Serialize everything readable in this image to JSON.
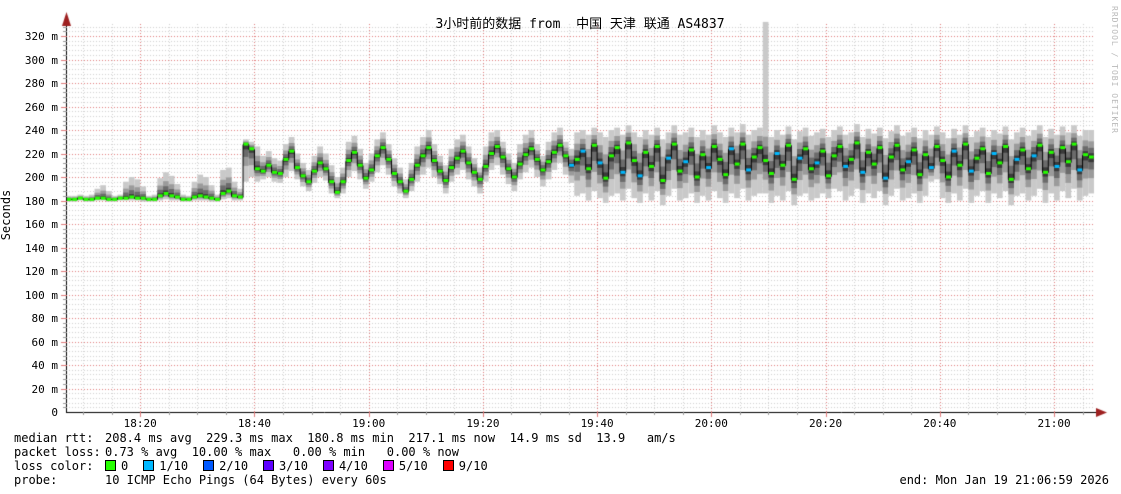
{
  "watermark": "RRDTOOL / TOBI OETIKER",
  "stats": {
    "rows": [
      {
        "label": "median rtt:",
        "text": "208.4 ms avg  229.3 ms max  180.8 ms min  217.1 ms now  14.9 ms sd  13.9   am/s"
      },
      {
        "label": "packet loss:",
        "text": "0.73 % avg  10.00 % max   0.00 % min   0.00 % now"
      },
      {
        "label": "loss color:",
        "legend": true
      },
      {
        "label": "probe:",
        "text": "10 ICMP Echo Pings (64 Bytes) every 60s"
      }
    ],
    "end_label": "end: Mon Jan 19 21:06:59 2026"
  },
  "legend_loss": [
    {
      "label": "0",
      "color": "#26ff00"
    },
    {
      "label": "1/10",
      "color": "#00b8ff"
    },
    {
      "label": "2/10",
      "color": "#0059ff"
    },
    {
      "label": "3/10",
      "color": "#5e00ff"
    },
    {
      "label": "4/10",
      "color": "#7e00ff"
    },
    {
      "label": "5/10",
      "color": "#dd00ff"
    },
    {
      "label": "9/10",
      "color": "#ff0000"
    }
  ],
  "chart_data": {
    "type": "line",
    "variant": "smokeping-latency-smoke-band",
    "title": "3小时前的数据 from  中国 天津 联通 AS4837",
    "ylabel": "Seconds",
    "ylim": [
      0,
      330
    ],
    "y_unit": "ms",
    "y_major_step": 20,
    "y_minor_step": 4,
    "grid": true,
    "y_ticks": [
      {
        "value": 0,
        "label": "0"
      },
      {
        "value": 20,
        "label": "20 m"
      },
      {
        "value": 40,
        "label": "40 m"
      },
      {
        "value": 60,
        "label": "60 m"
      },
      {
        "value": 80,
        "label": "80 m"
      },
      {
        "value": 100,
        "label": "100 m"
      },
      {
        "value": 120,
        "label": "120 m"
      },
      {
        "value": 140,
        "label": "140 m"
      },
      {
        "value": 160,
        "label": "160 m"
      },
      {
        "value": 180,
        "label": "180 m"
      },
      {
        "value": 200,
        "label": "200 m"
      },
      {
        "value": 220,
        "label": "220 m"
      },
      {
        "value": 240,
        "label": "240 m"
      },
      {
        "value": 260,
        "label": "260 m"
      },
      {
        "value": 280,
        "label": "280 m"
      },
      {
        "value": 300,
        "label": "300 m"
      },
      {
        "value": 320,
        "label": "320 m"
      }
    ],
    "x_start": "18:07",
    "x_end": "21:07",
    "point_interval_min": 1,
    "x_minor_step_min": 5,
    "x_ticks": [
      {
        "label": "18:20",
        "min": 13
      },
      {
        "label": "18:40",
        "min": 33
      },
      {
        "label": "19:00",
        "min": 53
      },
      {
        "label": "19:20",
        "min": 73
      },
      {
        "label": "19:40",
        "min": 93
      },
      {
        "label": "20:00",
        "min": 113
      },
      {
        "label": "20:20",
        "min": 133
      },
      {
        "label": "20:40",
        "min": 153
      },
      {
        "label": "21:00",
        "min": 173
      }
    ],
    "summary": {
      "median_rtt_ms": {
        "avg": 208.4,
        "max": 229.3,
        "min": 180.8,
        "now": 217.1,
        "sd": 14.9,
        "am_s": 13.9
      },
      "packet_loss_pct": {
        "avg": 0.73,
        "max": 10.0,
        "min": 0.0,
        "now": 0.0
      }
    },
    "colors": {
      "median_by_loss_bucket": [
        "#26ff00",
        "#00b8ff",
        "#0059ff",
        "#5e00ff",
        "#7e00ff",
        "#dd00ff",
        "#ff0000"
      ],
      "smoke_layers": [
        "#c9c9c9",
        "#9b9b9b",
        "#6b6b6b",
        "#3a3a3a"
      ],
      "grid_major": "#e07a7a",
      "grid_minor": "#cfcfcf",
      "axis": "#000000",
      "arrow": "#9e2020",
      "median_line": "#000000"
    },
    "series_format": [
      "median_ms",
      "smoke_low_ms",
      "smoke_high_ms",
      "loss_bucket"
    ],
    "points": [
      [
        181,
        179,
        184,
        0
      ],
      [
        181,
        179,
        184,
        0
      ],
      [
        182,
        180,
        185,
        0
      ],
      [
        181,
        179,
        184,
        0
      ],
      [
        181,
        179,
        185,
        0
      ],
      [
        182,
        180,
        190,
        0
      ],
      [
        182,
        180,
        193,
        0
      ],
      [
        181,
        179,
        188,
        0
      ],
      [
        181,
        179,
        184,
        0
      ],
      [
        182,
        180,
        185,
        0
      ],
      [
        182,
        180,
        196,
        0
      ],
      [
        183,
        180,
        200,
        0
      ],
      [
        182,
        180,
        198,
        0
      ],
      [
        182,
        179,
        192,
        0
      ],
      [
        181,
        179,
        184,
        0
      ],
      [
        181,
        179,
        185,
        0
      ],
      [
        184,
        180,
        199,
        0
      ],
      [
        186,
        181,
        204,
        0
      ],
      [
        184,
        180,
        201,
        0
      ],
      [
        183,
        180,
        194,
        0
      ],
      [
        181,
        179,
        185,
        0
      ],
      [
        181,
        179,
        184,
        0
      ],
      [
        183,
        180,
        196,
        0
      ],
      [
        184,
        180,
        202,
        0
      ],
      [
        183,
        180,
        200,
        0
      ],
      [
        182,
        179,
        193,
        0
      ],
      [
        181,
        179,
        185,
        0
      ],
      [
        186,
        181,
        206,
        0
      ],
      [
        188,
        182,
        208,
        0
      ],
      [
        184,
        180,
        196,
        0
      ],
      [
        183,
        180,
        190,
        0
      ],
      [
        228,
        196,
        232,
        0
      ],
      [
        224,
        200,
        230,
        0
      ],
      [
        207,
        196,
        226,
        0
      ],
      [
        205,
        198,
        218,
        0
      ],
      [
        210,
        200,
        222,
        0
      ],
      [
        204,
        196,
        216,
        0
      ],
      [
        203,
        195,
        214,
        0
      ],
      [
        215,
        200,
        228,
        0
      ],
      [
        222,
        205,
        234,
        0
      ],
      [
        208,
        198,
        220,
        0
      ],
      [
        201,
        192,
        212,
        0
      ],
      [
        196,
        188,
        206,
        0
      ],
      [
        205,
        195,
        218,
        0
      ],
      [
        212,
        200,
        226,
        0
      ],
      [
        207,
        197,
        220,
        0
      ],
      [
        196,
        186,
        210,
        0
      ],
      [
        187,
        182,
        200,
        0
      ],
      [
        196,
        186,
        208,
        0
      ],
      [
        214,
        200,
        230,
        0
      ],
      [
        221,
        205,
        235,
        0
      ],
      [
        210,
        198,
        224,
        0
      ],
      [
        199,
        190,
        212,
        0
      ],
      [
        206,
        196,
        220,
        0
      ],
      [
        218,
        204,
        232,
        0
      ],
      [
        225,
        210,
        238,
        0
      ],
      [
        215,
        202,
        228,
        0
      ],
      [
        203,
        192,
        216,
        0
      ],
      [
        196,
        186,
        208,
        0
      ],
      [
        188,
        182,
        198,
        0
      ],
      [
        198,
        188,
        212,
        0
      ],
      [
        210,
        196,
        226,
        0
      ],
      [
        218,
        202,
        234,
        0
      ],
      [
        225,
        208,
        240,
        0
      ],
      [
        214,
        200,
        228,
        0
      ],
      [
        205,
        194,
        218,
        0
      ],
      [
        197,
        186,
        210,
        0
      ],
      [
        208,
        196,
        224,
        0
      ],
      [
        216,
        202,
        232,
        0
      ],
      [
        222,
        206,
        236,
        0
      ],
      [
        212,
        198,
        226,
        0
      ],
      [
        204,
        192,
        216,
        0
      ],
      [
        198,
        186,
        208,
        0
      ],
      [
        209,
        196,
        226,
        0
      ],
      [
        220,
        206,
        238,
        0
      ],
      [
        226,
        210,
        240,
        0
      ],
      [
        217,
        202,
        230,
        0
      ],
      [
        207,
        194,
        220,
        0
      ],
      [
        200,
        188,
        212,
        0
      ],
      [
        211,
        198,
        228,
        0
      ],
      [
        219,
        204,
        236,
        0
      ],
      [
        224,
        208,
        240,
        0
      ],
      [
        215,
        200,
        228,
        0
      ],
      [
        206,
        192,
        218,
        0
      ],
      [
        213,
        198,
        230,
        0
      ],
      [
        221,
        206,
        238,
        0
      ],
      [
        227,
        212,
        242,
        0
      ],
      [
        218,
        202,
        230,
        0
      ],
      [
        210,
        195,
        224,
        1
      ],
      [
        215,
        184,
        238,
        0
      ],
      [
        222,
        186,
        240,
        1
      ],
      [
        207,
        180,
        236,
        0
      ],
      [
        227,
        188,
        242,
        0
      ],
      [
        212,
        182,
        238,
        1
      ],
      [
        199,
        178,
        234,
        0
      ],
      [
        218,
        184,
        240,
        0
      ],
      [
        225,
        186,
        242,
        0
      ],
      [
        204,
        180,
        236,
        1
      ],
      [
        229,
        190,
        244,
        0
      ],
      [
        214,
        182,
        238,
        0
      ],
      [
        201,
        178,
        234,
        1
      ],
      [
        221,
        186,
        240,
        0
      ],
      [
        209,
        180,
        236,
        0
      ],
      [
        226,
        188,
        242,
        0
      ],
      [
        197,
        176,
        232,
        0
      ],
      [
        216,
        184,
        238,
        1
      ],
      [
        228,
        190,
        244,
        0
      ],
      [
        205,
        180,
        236,
        0
      ],
      [
        213,
        182,
        238,
        1
      ],
      [
        223,
        186,
        242,
        0
      ],
      [
        200,
        178,
        234,
        0
      ],
      [
        219,
        184,
        240,
        0
      ],
      [
        208,
        180,
        236,
        1
      ],
      [
        226,
        188,
        244,
        0
      ],
      [
        215,
        182,
        238,
        0
      ],
      [
        202,
        178,
        234,
        0
      ],
      [
        224,
        186,
        242,
        1
      ],
      [
        211,
        182,
        238,
        0
      ],
      [
        228,
        190,
        245,
        0
      ],
      [
        206,
        180,
        236,
        1
      ],
      [
        217,
        184,
        240,
        0
      ],
      [
        225,
        186,
        242,
        0
      ],
      [
        214,
        186,
        332,
        0
      ],
      [
        203,
        178,
        234,
        0
      ],
      [
        220,
        184,
        240,
        1
      ],
      [
        210,
        180,
        236,
        0
      ],
      [
        227,
        188,
        243,
        0
      ],
      [
        198,
        176,
        232,
        0
      ],
      [
        216,
        184,
        239,
        1
      ],
      [
        224,
        186,
        242,
        0
      ],
      [
        207,
        180,
        235,
        0
      ],
      [
        212,
        182,
        238,
        1
      ],
      [
        222,
        186,
        241,
        0
      ],
      [
        201,
        182,
        234,
        0
      ],
      [
        218,
        190,
        240,
        0
      ],
      [
        226,
        188,
        243,
        0
      ],
      [
        209,
        180,
        236,
        1
      ],
      [
        215,
        184,
        238,
        0
      ],
      [
        229,
        190,
        245,
        0
      ],
      [
        204,
        178,
        234,
        1
      ],
      [
        221,
        186,
        241,
        0
      ],
      [
        211,
        182,
        237,
        0
      ],
      [
        225,
        188,
        242,
        0
      ],
      [
        199,
        176,
        233,
        1
      ],
      [
        217,
        184,
        239,
        0
      ],
      [
        227,
        190,
        244,
        0
      ],
      [
        206,
        180,
        235,
        0
      ],
      [
        213,
        182,
        238,
        1
      ],
      [
        223,
        186,
        242,
        0
      ],
      [
        202,
        178,
        233,
        0
      ],
      [
        219,
        184,
        240,
        0
      ],
      [
        208,
        196,
        236,
        1
      ],
      [
        226,
        198,
        243,
        0
      ],
      [
        214,
        182,
        238,
        0
      ],
      [
        200,
        178,
        233,
        0
      ],
      [
        222,
        186,
        241,
        1
      ],
      [
        210,
        180,
        236,
        0
      ],
      [
        228,
        190,
        244,
        0
      ],
      [
        205,
        178,
        234,
        1
      ],
      [
        216,
        184,
        239,
        0
      ],
      [
        224,
        188,
        242,
        0
      ],
      [
        203,
        178,
        234,
        0
      ],
      [
        220,
        186,
        240,
        1
      ],
      [
        212,
        182,
        237,
        0
      ],
      [
        226,
        188,
        243,
        0
      ],
      [
        198,
        176,
        232,
        0
      ],
      [
        215,
        184,
        238,
        1
      ],
      [
        223,
        186,
        242,
        0
      ],
      [
        207,
        180,
        235,
        0
      ],
      [
        218,
        184,
        240,
        1
      ],
      [
        227,
        190,
        244,
        0
      ],
      [
        204,
        178,
        234,
        0
      ],
      [
        221,
        186,
        241,
        0
      ],
      [
        209,
        180,
        236,
        1
      ],
      [
        225,
        188,
        243,
        0
      ],
      [
        213,
        182,
        238,
        0
      ],
      [
        228,
        190,
        244,
        0
      ],
      [
        206,
        180,
        235,
        1
      ],
      [
        219,
        184,
        240,
        0
      ],
      [
        217,
        186,
        240,
        0
      ]
    ]
  }
}
